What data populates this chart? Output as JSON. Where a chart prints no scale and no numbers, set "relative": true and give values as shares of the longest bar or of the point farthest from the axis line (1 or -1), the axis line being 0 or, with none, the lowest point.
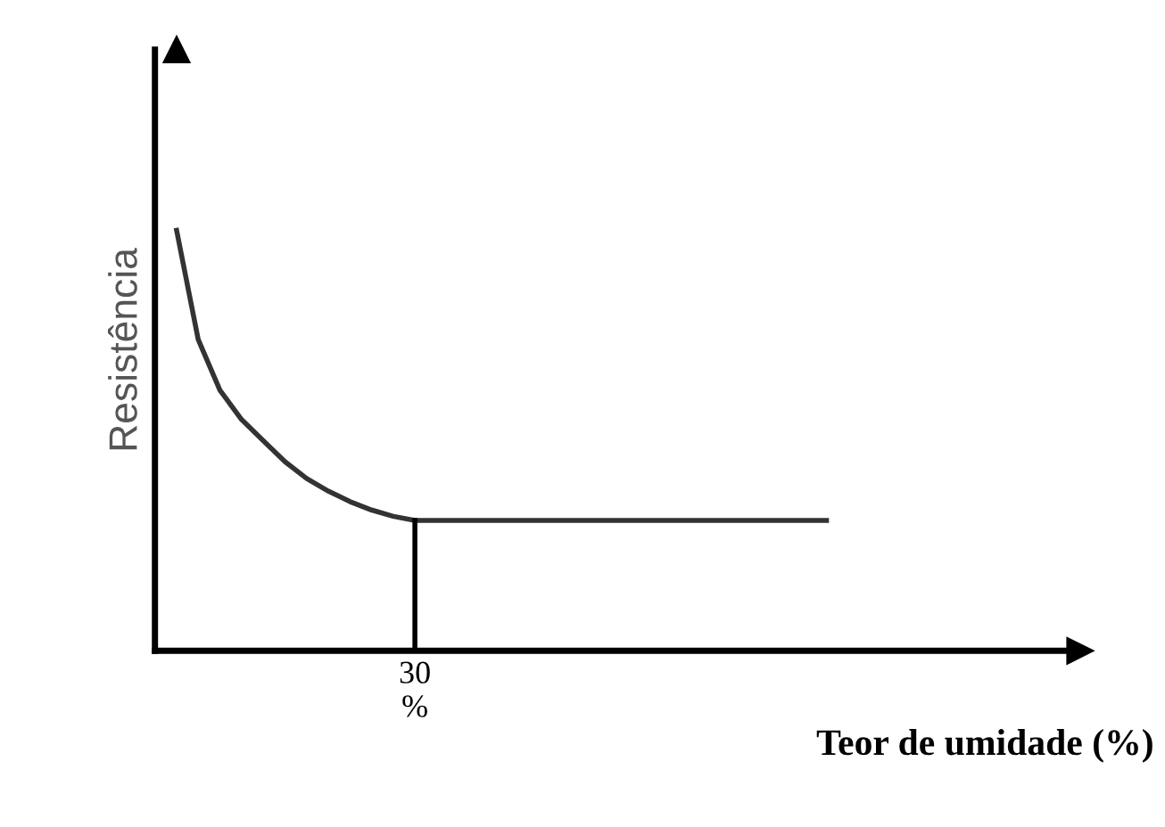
{
  "chart_data": {
    "type": "line",
    "relative": true,
    "ylabel": "Resistência",
    "xlabel": "Teor de umidade (%)",
    "categories": [
      null,
      null,
      null,
      null,
      null,
      null,
      null,
      null,
      null,
      null,
      null,
      null,
      null,
      null,
      null,
      null,
      null,
      null,
      null,
      null,
      null,
      null,
      null,
      null,
      null,
      null,
      null,
      null,
      null,
      null,
      null
    ],
    "annotations": [
      "30\n%"
    ],
    "series": [
      {
        "color": "#333333",
        "values": [
          1,
          0.74,
          0.62,
          0.55,
          0.5,
          0.45,
          0.41,
          0.38,
          0.355,
          0.335,
          0.32,
          0.31,
          0.31,
          0.31,
          0.31,
          0.31,
          0.31,
          0.31,
          0.31,
          0.31,
          0.31,
          0.31,
          0.31,
          0.31,
          0.31,
          0.31,
          0.31,
          0.31,
          0.31,
          0.31,
          0.31
        ]
      }
    ]
  }
}
